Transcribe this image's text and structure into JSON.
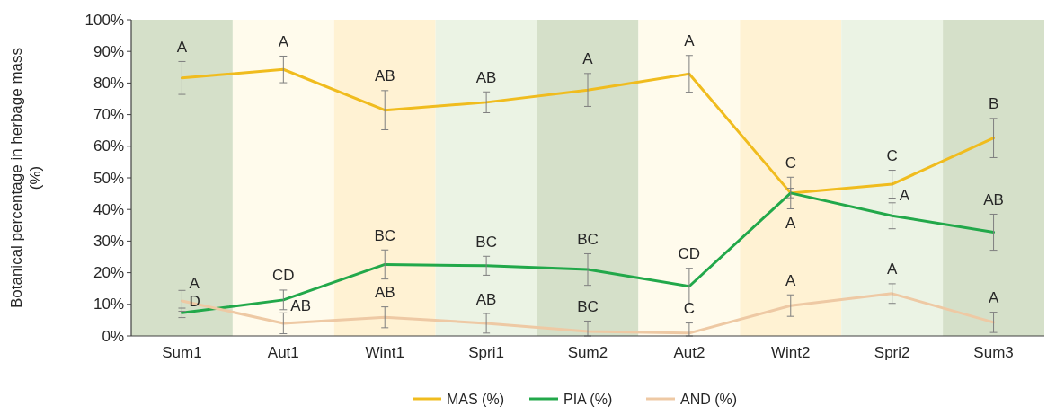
{
  "chart_data": {
    "type": "line",
    "ylabel": "Botanical percentage in herbage mass (%)",
    "categories": [
      "Sum1",
      "Aut1",
      "Wint1",
      "Spri1",
      "Sum2",
      "Aut2",
      "Wint2",
      "Spri2",
      "Sum3"
    ],
    "ylim": [
      0,
      100
    ],
    "yticks": [
      {
        "value": 0,
        "label": "0%"
      },
      {
        "value": 10,
        "label": "10%"
      },
      {
        "value": 20,
        "label": "20%"
      },
      {
        "value": 30,
        "label": "30%"
      },
      {
        "value": 40,
        "label": "40%"
      },
      {
        "value": 50,
        "label": "50%"
      },
      {
        "value": 60,
        "label": "60%"
      },
      {
        "value": 70,
        "label": "70%"
      },
      {
        "value": 80,
        "label": "80%"
      },
      {
        "value": 90,
        "label": "90%"
      },
      {
        "value": 100,
        "label": "100%"
      }
    ],
    "grid": false,
    "legend": "bottom",
    "marker": "none",
    "line_style": "solid",
    "series": [
      {
        "name": "MAS (%)",
        "color": "#f0bc1e",
        "values": [
          81.6,
          84.3,
          71.4,
          73.9,
          77.8,
          82.9,
          45.2,
          48.0,
          62.6
        ],
        "errors": [
          5.2,
          4.2,
          6.2,
          3.3,
          5.2,
          5.8,
          5.0,
          4.4,
          6.2
        ]
      },
      {
        "name": "PIA (%)",
        "color": "#22a84a",
        "values": [
          7.3,
          11.4,
          22.6,
          22.2,
          21.0,
          15.7,
          45.2,
          38.0,
          32.8
        ],
        "errors": [
          1.5,
          3.1,
          4.6,
          3.0,
          5.0,
          5.7,
          1.5,
          4.1,
          5.7
        ]
      },
      {
        "name": "AND (%)",
        "color": "#eec9a4",
        "values": [
          11.1,
          4.0,
          5.9,
          4.0,
          1.4,
          0.9,
          9.6,
          13.4,
          4.3
        ],
        "errors": [
          3.3,
          3.3,
          3.3,
          3.1,
          [
            0,
            4.7
          ],
          [
            0,
            4.1
          ],
          3.4,
          3.1,
          3.2
        ]
      }
    ],
    "bands": [
      {
        "axis": "x",
        "from": "Sum1",
        "to": "Sum1",
        "color": "#d5e0c9"
      },
      {
        "axis": "x",
        "from": "Aut1",
        "to": "Aut1",
        "color": "#fffbec"
      },
      {
        "axis": "x",
        "from": "Wint1",
        "to": "Wint1",
        "color": "#fff2d3"
      },
      {
        "axis": "x",
        "from": "Spri1",
        "to": "Spri1",
        "color": "#ebf3e4"
      },
      {
        "axis": "x",
        "from": "Sum2",
        "to": "Sum2",
        "color": "#d5e0c9"
      },
      {
        "axis": "x",
        "from": "Aut2",
        "to": "Aut2",
        "color": "#fffbec"
      },
      {
        "axis": "x",
        "from": "Wint2",
        "to": "Wint2",
        "color": "#fff2d3"
      },
      {
        "axis": "x",
        "from": "Spri2",
        "to": "Spri2",
        "color": "#ebf3e4"
      },
      {
        "axis": "x",
        "from": "Sum3",
        "to": "Sum3",
        "color": "#d5e0c9"
      }
    ],
    "annotations": [
      {
        "text": "A",
        "x": "Sum1",
        "y": 81.6
      },
      {
        "text": "A",
        "x": "Aut1",
        "y": 84.3
      },
      {
        "text": "AB",
        "x": "Wint1",
        "y": 71.4
      },
      {
        "text": "AB",
        "x": "Spri1",
        "y": 73.9
      },
      {
        "text": "A",
        "x": "Sum2",
        "y": 77.8
      },
      {
        "text": "A",
        "x": "Aut2",
        "y": 82.9
      },
      {
        "text": "C",
        "x": "Wint2",
        "y": 45.2
      },
      {
        "text": "C",
        "x": "Spri2",
        "y": 48.0
      },
      {
        "text": "B",
        "x": "Sum3",
        "y": 62.6
      },
      {
        "text": "D",
        "x": "Sum1",
        "y": 7.3
      },
      {
        "text": "CD",
        "x": "Aut1",
        "y": 11.4
      },
      {
        "text": "BC",
        "x": "Wint1",
        "y": 22.6
      },
      {
        "text": "BC",
        "x": "Spri1",
        "y": 22.2
      },
      {
        "text": "BC",
        "x": "Sum2",
        "y": 21.0
      },
      {
        "text": "CD",
        "x": "Aut2",
        "y": 15.7
      },
      {
        "text": "A",
        "x": "Wint2",
        "y": 45.2
      },
      {
        "text": "A",
        "x": "Spri2",
        "y": 38.0
      },
      {
        "text": "AB",
        "x": "Sum3",
        "y": 32.8
      },
      {
        "text": "A",
        "x": "Sum1",
        "y": 11.1
      },
      {
        "text": "AB",
        "x": "Aut1",
        "y": 4.0
      },
      {
        "text": "AB",
        "x": "Wint1",
        "y": 5.9
      },
      {
        "text": "AB",
        "x": "Spri1",
        "y": 4.0
      },
      {
        "text": "BC",
        "x": "Sum2",
        "y": 1.4
      },
      {
        "text": "C",
        "x": "Aut2",
        "y": 0.9
      },
      {
        "text": "A",
        "x": "Wint2",
        "y": 9.6
      },
      {
        "text": "A",
        "x": "Spri2",
        "y": 13.4
      },
      {
        "text": "A",
        "x": "Sum3",
        "y": 4.3
      }
    ]
  }
}
